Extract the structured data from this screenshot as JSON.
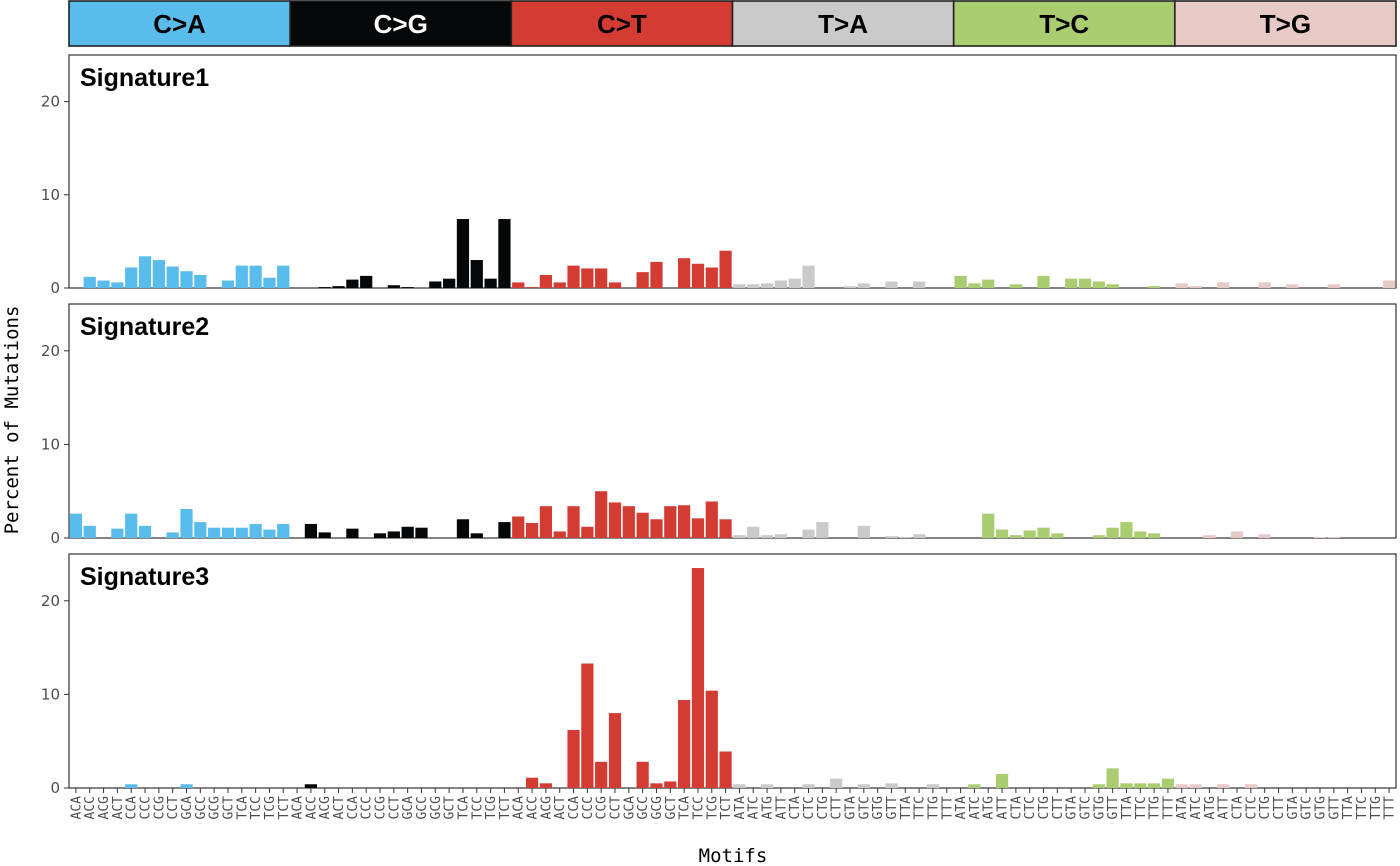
{
  "chart_data": {
    "type": "bar",
    "xlabel": "Motifs",
    "ylabel": "Percent of Mutations",
    "ylim": [
      0,
      25
    ],
    "yticks": [
      0,
      10,
      20
    ],
    "grid": false,
    "mutation_types": [
      {
        "label": "C>A",
        "color": "#5ABCEB",
        "text_color": "#000000"
      },
      {
        "label": "C>G",
        "color": "#050708",
        "text_color": "#ffffff"
      },
      {
        "label": "C>T",
        "color": "#D33C32",
        "text_color": "#000000"
      },
      {
        "label": "T>A",
        "color": "#CBCACB",
        "text_color": "#000000"
      },
      {
        "label": "T>C",
        "color": "#ABCD72",
        "text_color": "#000000"
      },
      {
        "label": "T>G",
        "color": "#E7C9C6",
        "text_color": "#000000"
      }
    ],
    "motifs": [
      [
        "ACA",
        "ACC",
        "ACG",
        "ACT",
        "CCA",
        "CCC",
        "CCG",
        "CCT",
        "GCA",
        "GCC",
        "GCG",
        "GCT",
        "TCA",
        "TCC",
        "TCG",
        "TCT"
      ],
      [
        "ACA",
        "ACC",
        "ACG",
        "ACT",
        "CCA",
        "CCC",
        "CCG",
        "CCT",
        "GCA",
        "GCC",
        "GCG",
        "GCT",
        "TCA",
        "TCC",
        "TCG",
        "TCT"
      ],
      [
        "ACA",
        "ACC",
        "ACG",
        "ACT",
        "CCA",
        "CCC",
        "CCG",
        "CCT",
        "GCA",
        "GCC",
        "GCG",
        "GCT",
        "TCA",
        "TCC",
        "TCG",
        "TCT"
      ],
      [
        "ATA",
        "ATC",
        "ATG",
        "ATT",
        "CTA",
        "CTC",
        "CTG",
        "CTT",
        "GTA",
        "GTC",
        "GTG",
        "GTT",
        "TTA",
        "TTC",
        "TTG",
        "TTT"
      ],
      [
        "ATA",
        "ATC",
        "ATG",
        "ATT",
        "CTA",
        "CTC",
        "CTG",
        "CTT",
        "GTA",
        "GTC",
        "GTG",
        "GTT",
        "TTA",
        "TTC",
        "TTG",
        "TTT"
      ],
      [
        "ATA",
        "ATC",
        "ATG",
        "ATT",
        "CTA",
        "CTC",
        "CTG",
        "CTT",
        "GTA",
        "GTC",
        "GTG",
        "GTT",
        "TTA",
        "TTC",
        "TTG",
        "TTT"
      ]
    ],
    "series": [
      {
        "name": "Signature1",
        "values": [
          [
            0,
            1.2,
            0.8,
            0.6,
            2.2,
            3.4,
            3.0,
            2.3,
            1.8,
            1.4,
            0,
            0.8,
            2.4,
            2.4,
            1.1,
            2.4
          ],
          [
            0,
            0,
            0.1,
            0.2,
            0.9,
            1.3,
            0,
            0.3,
            0.1,
            0,
            0.7,
            1.0,
            7.4,
            3.0,
            1.0,
            7.4
          ],
          [
            0.6,
            0.1,
            1.4,
            0.6,
            2.4,
            2.1,
            2.1,
            0.6,
            0,
            1.7,
            2.8,
            0,
            3.2,
            2.6,
            2.2,
            4.0
          ],
          [
            0.4,
            0.4,
            0.5,
            0.8,
            1.0,
            2.4,
            0,
            0,
            0.2,
            0.5,
            0,
            0.7,
            0,
            0.7,
            0,
            0
          ],
          [
            1.3,
            0.5,
            0.9,
            0,
            0.4,
            0,
            1.3,
            0,
            1.0,
            1.0,
            0.7,
            0.4,
            0,
            0,
            0.2,
            0
          ],
          [
            0.5,
            0.2,
            0,
            0.6,
            0,
            0,
            0.6,
            0,
            0.4,
            0,
            0,
            0.4,
            0,
            0,
            0,
            0.8
          ]
        ]
      },
      {
        "name": "Signature2",
        "values": [
          [
            2.6,
            1.3,
            0,
            1.0,
            2.6,
            1.3,
            0,
            0.6,
            3.1,
            1.7,
            1.1,
            1.1,
            1.1,
            1.5,
            0.9,
            1.5
          ],
          [
            0,
            1.5,
            0.6,
            0,
            1.0,
            0,
            0.5,
            0.7,
            1.2,
            1.1,
            0,
            0,
            2.0,
            0.5,
            0,
            1.7
          ],
          [
            2.3,
            1.6,
            3.4,
            0.7,
            3.4,
            1.2,
            5.0,
            3.8,
            3.4,
            2.7,
            2.0,
            3.4,
            3.5,
            2.1,
            3.9,
            2.0
          ],
          [
            0.3,
            1.2,
            0.3,
            0.4,
            0,
            0.9,
            1.7,
            0,
            0,
            1.3,
            0,
            0.2,
            0.1,
            0.4,
            0,
            0
          ],
          [
            0,
            0,
            2.6,
            0.9,
            0.3,
            0.8,
            1.1,
            0.5,
            0,
            0,
            0.3,
            1.1,
            1.7,
            0.7,
            0.5,
            0
          ],
          [
            0,
            0,
            0.3,
            0,
            0.7,
            0,
            0.4,
            0,
            0,
            0,
            0.1,
            0.1,
            0,
            0,
            0,
            0
          ]
        ]
      },
      {
        "name": "Signature3",
        "values": [
          [
            0,
            0,
            0,
            0,
            0.4,
            0,
            0,
            0,
            0.4,
            0,
            0,
            0,
            0,
            0,
            0,
            0
          ],
          [
            0,
            0.4,
            0,
            0,
            0,
            0,
            0,
            0,
            0,
            0,
            0,
            0,
            0,
            0,
            0,
            0
          ],
          [
            0,
            1.1,
            0.5,
            0,
            6.2,
            13.3,
            2.8,
            8.0,
            0,
            2.8,
            0.5,
            0.7,
            9.4,
            23.5,
            10.4,
            3.9
          ],
          [
            0.4,
            0,
            0.4,
            0,
            0,
            0.4,
            0,
            1.0,
            0,
            0.4,
            0,
            0.5,
            0,
            0,
            0.4,
            0
          ],
          [
            0,
            0.4,
            0,
            1.5,
            0,
            0,
            0,
            0,
            0,
            0,
            0.4,
            2.1,
            0.5,
            0.5,
            0.5,
            1.0
          ],
          [
            0.4,
            0.4,
            0,
            0.4,
            0,
            0.4,
            0,
            0,
            0,
            0,
            0,
            0,
            0,
            0,
            0,
            0
          ]
        ]
      }
    ]
  }
}
